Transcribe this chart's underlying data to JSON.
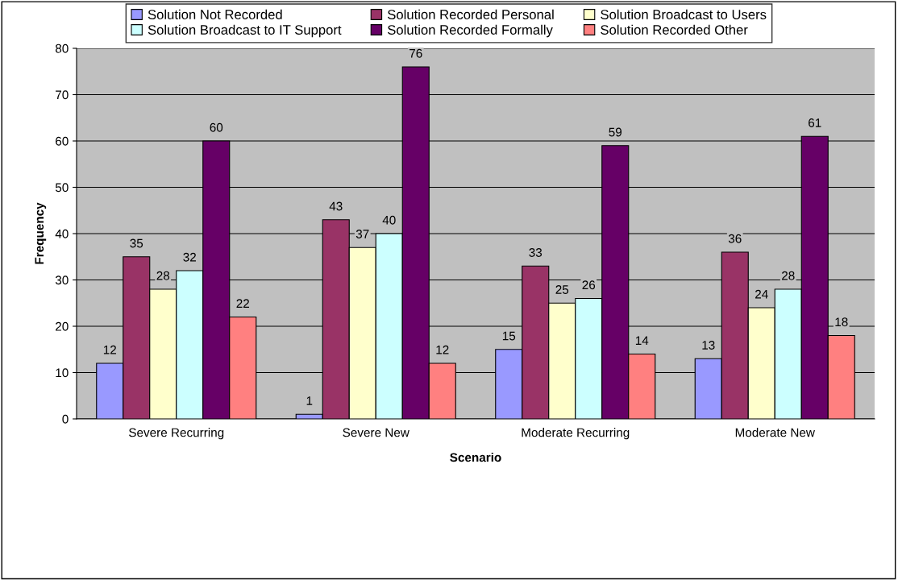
{
  "chart_data": {
    "type": "bar",
    "xlabel": "Scenario",
    "ylabel": "Frequency",
    "categories": [
      "Severe Recurring",
      "Severe New",
      "Moderate Recurring",
      "Moderate New"
    ],
    "series": [
      {
        "name": "Solution Not Recorded",
        "color": "#9999ff",
        "values": [
          12,
          1,
          15,
          13
        ]
      },
      {
        "name": "Solution Recorded Personal",
        "color": "#993366",
        "values": [
          35,
          43,
          33,
          36
        ]
      },
      {
        "name": "Solution Broadcast to Users",
        "color": "#ffffcc",
        "values": [
          28,
          37,
          25,
          24
        ]
      },
      {
        "name": "Solution Broadcast to IT Support",
        "color": "#ccffff",
        "values": [
          32,
          40,
          26,
          28
        ]
      },
      {
        "name": "Solution Recorded Formally",
        "color": "#660066",
        "values": [
          60,
          76,
          59,
          61
        ]
      },
      {
        "name": "Solution Recorded Other",
        "color": "#ff8080",
        "values": [
          22,
          12,
          14,
          18
        ]
      }
    ],
    "ylim": [
      0,
      80
    ],
    "yticks": [
      0,
      10,
      20,
      30,
      40,
      50,
      60,
      70,
      80
    ],
    "grid": "y",
    "legend": "top",
    "data_labels": true
  }
}
